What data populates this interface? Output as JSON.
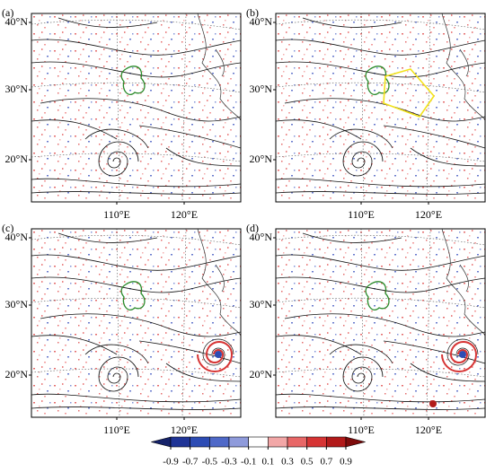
{
  "panels": [
    {
      "label": "(a)"
    },
    {
      "label": "(b)"
    },
    {
      "label": "(c)"
    },
    {
      "label": "(d)"
    }
  ],
  "lat_labels": [
    "40°N",
    "30°N",
    "20°N"
  ],
  "lon_labels": [
    "110°E",
    "120°E"
  ],
  "colorbar": {
    "ticks": [
      -0.9,
      -0.7,
      -0.5,
      -0.3,
      -0.1,
      0.1,
      0.3,
      0.5,
      0.7,
      0.9
    ],
    "colors": [
      "#15236a",
      "#1f3496",
      "#2d4cb4",
      "#4f69c8",
      "#8f9bdb",
      "#ffffff",
      "#f2a7a7",
      "#e86767",
      "#d63434",
      "#b21a1a",
      "#7e0c0c"
    ]
  }
}
